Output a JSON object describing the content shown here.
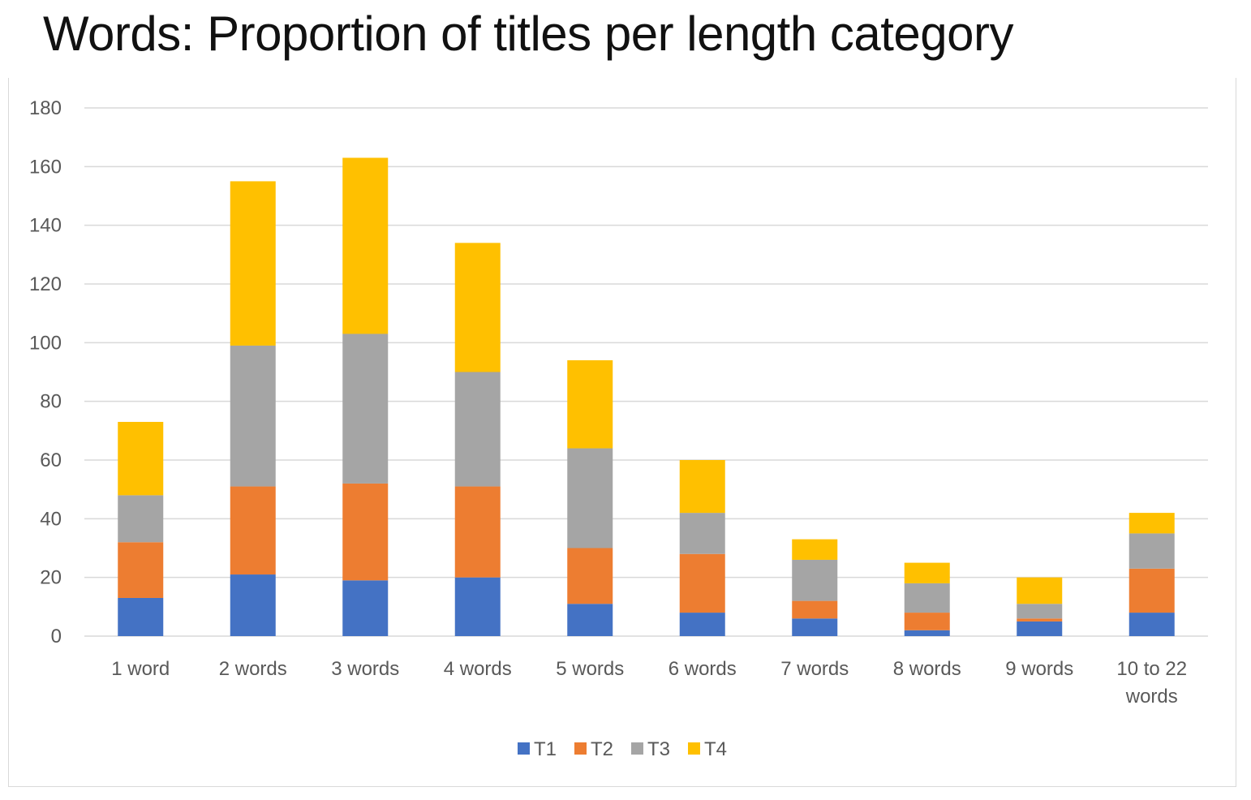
{
  "slide": {
    "title_bold": "Words",
    "title_rest": ": Proportion of titles per length category"
  },
  "colors": {
    "T1": "#4472C4",
    "T2": "#ED7D31",
    "T3": "#A5A5A5",
    "T4": "#FFC000",
    "grid": "#d9d9d9",
    "axis_text": "#595959"
  },
  "chart_data": {
    "type": "bar",
    "stacked": true,
    "title": "",
    "xlabel": "",
    "ylabel": "",
    "ylim": [
      0,
      180
    ],
    "yticks": [
      0,
      20,
      40,
      60,
      80,
      100,
      120,
      140,
      160,
      180
    ],
    "grid": true,
    "legend_position": "bottom",
    "categories": [
      [
        "1 word"
      ],
      [
        "2 words"
      ],
      [
        "3 words"
      ],
      [
        "4 words"
      ],
      [
        "5 words"
      ],
      [
        "6 words"
      ],
      [
        "7 words"
      ],
      [
        "8 words"
      ],
      [
        "9 words"
      ],
      [
        "10 to 22",
        "words"
      ]
    ],
    "series": [
      {
        "name": "T1",
        "values": [
          13,
          21,
          19,
          20,
          11,
          8,
          6,
          2,
          5,
          8
        ]
      },
      {
        "name": "T2",
        "values": [
          19,
          30,
          33,
          31,
          19,
          20,
          6,
          6,
          1,
          15
        ]
      },
      {
        "name": "T3",
        "values": [
          16,
          48,
          51,
          39,
          34,
          14,
          14,
          10,
          5,
          12
        ]
      },
      {
        "name": "T4",
        "values": [
          25,
          56,
          60,
          44,
          30,
          18,
          7,
          7,
          9,
          7
        ]
      }
    ]
  }
}
